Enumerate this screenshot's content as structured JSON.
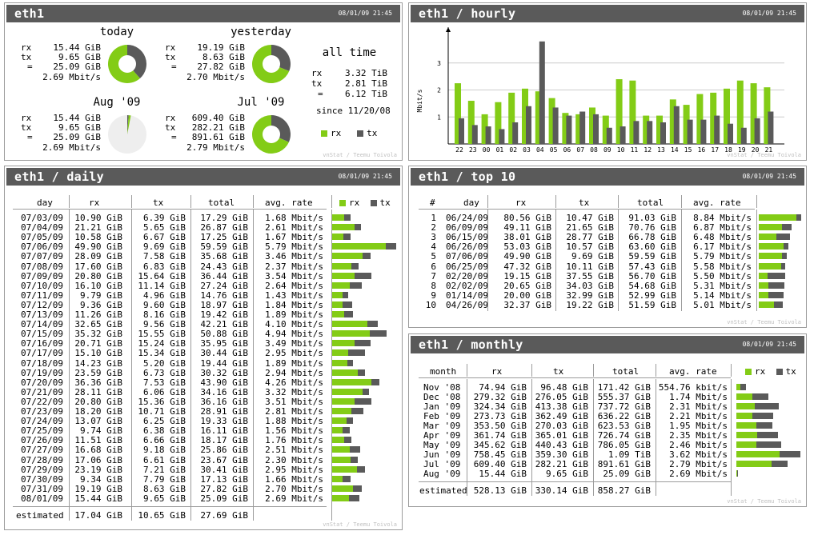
{
  "colors": {
    "rx": "#83cc16",
    "tx": "#5a5a5a",
    "header": "#5a5a5a",
    "pie_bg": "#eeeeee"
  },
  "summary": {
    "title": "eth1",
    "date": "08/01/09 21:45",
    "credit": "vnStat / Teemu Toivola",
    "blocks": [
      {
        "name": "today",
        "rx": "15.44 GiB",
        "tx": "9.65 GiB",
        "total": "25.09 GiB",
        "rate": "2.69 Mbit/s",
        "rx_v": 15.44,
        "tx_v": 9.65,
        "fill": 1.0
      },
      {
        "name": "yesterday",
        "rx": "19.19 GiB",
        "tx": "8.63 GiB",
        "total": "27.82 GiB",
        "rate": "2.70 Mbit/s",
        "rx_v": 19.19,
        "tx_v": 8.63,
        "fill": 1.0
      },
      {
        "name": "Aug '09",
        "rx": "15.44 GiB",
        "tx": "9.65 GiB",
        "total": "25.09 GiB",
        "rate": "2.69 Mbit/s",
        "rx_v": 15.44,
        "tx_v": 9.65,
        "fill": 0.03
      },
      {
        "name": "Jul '09",
        "rx": "609.40 GiB",
        "tx": "282.21 GiB",
        "total": "891.61 GiB",
        "rate": "2.79 Mbit/s",
        "rx_v": 609.4,
        "tx_v": 282.21,
        "fill": 1.0
      }
    ],
    "alltime": {
      "head": "all time",
      "rx": "3.32 TiB",
      "tx": "2.81 TiB",
      "total": "6.12 TiB",
      "since": "since 11/20/08"
    },
    "labels": {
      "rx": "rx",
      "tx": "tx",
      "eq": "="
    }
  },
  "hourly": {
    "title": "eth1 / hourly",
    "date": "08/01/09 21:45",
    "credit": "vnStat / Teemu Toivola",
    "ylabel": "Mbit/s"
  },
  "chart_data": {
    "type": "bar",
    "categories": [
      "22",
      "23",
      "00",
      "01",
      "02",
      "03",
      "04",
      "05",
      "06",
      "07",
      "08",
      "09",
      "10",
      "11",
      "12",
      "13",
      "14",
      "15",
      "16",
      "17",
      "18",
      "19",
      "20",
      "21"
    ],
    "series": [
      {
        "name": "rx",
        "values": [
          2.25,
          1.6,
          1.1,
          1.55,
          1.9,
          2.05,
          1.95,
          1.7,
          1.15,
          1.1,
          1.35,
          1.05,
          2.4,
          2.35,
          1.05,
          1.05,
          1.65,
          1.45,
          1.85,
          1.9,
          2.05,
          2.35,
          2.25,
          2.1
        ]
      },
      {
        "name": "tx",
        "values": [
          0.95,
          0.7,
          0.65,
          0.55,
          0.8,
          1.4,
          3.8,
          1.35,
          1.05,
          1.2,
          1.1,
          0.6,
          0.65,
          0.85,
          0.85,
          0.8,
          1.4,
          0.9,
          0.9,
          1.05,
          0.75,
          0.6,
          0.95,
          1.2
        ]
      }
    ],
    "yticks": [
      "1",
      "2",
      "3"
    ],
    "ylim": [
      0,
      4.15
    ]
  },
  "daily": {
    "title": "eth1 / daily",
    "date": "08/01/09 21:45",
    "credit": "vnStat / Teemu Toivola",
    "columns": [
      "day",
      "rx",
      "tx",
      "total",
      "avg. rate"
    ],
    "legend": {
      "rx": "rx",
      "tx": "tx"
    },
    "rows": [
      {
        "c": [
          "07/03/09",
          "10.90 GiB",
          "6.39 GiB",
          "17.29 GiB",
          "1.68 Mbit/s"
        ],
        "rx": 10.9,
        "tx": 6.39
      },
      {
        "c": [
          "07/04/09",
          "21.21 GiB",
          "5.65 GiB",
          "26.87 GiB",
          "2.61 Mbit/s"
        ],
        "rx": 21.21,
        "tx": 5.65
      },
      {
        "c": [
          "07/05/09",
          "10.58 GiB",
          "6.67 GiB",
          "17.25 GiB",
          "1.67 Mbit/s"
        ],
        "rx": 10.58,
        "tx": 6.67
      },
      {
        "c": [
          "07/06/09",
          "49.90 GiB",
          "9.69 GiB",
          "59.59 GiB",
          "5.79 Mbit/s"
        ],
        "rx": 49.9,
        "tx": 9.69
      },
      {
        "c": [
          "07/07/09",
          "28.09 GiB",
          "7.58 GiB",
          "35.68 GiB",
          "3.46 Mbit/s"
        ],
        "rx": 28.09,
        "tx": 7.58
      },
      {
        "c": [
          "07/08/09",
          "17.60 GiB",
          "6.83 GiB",
          "24.43 GiB",
          "2.37 Mbit/s"
        ],
        "rx": 17.6,
        "tx": 6.83
      },
      {
        "c": [
          "07/09/09",
          "20.80 GiB",
          "15.64 GiB",
          "36.44 GiB",
          "3.54 Mbit/s"
        ],
        "rx": 20.8,
        "tx": 15.64
      },
      {
        "c": [
          "07/10/09",
          "16.10 GiB",
          "11.14 GiB",
          "27.24 GiB",
          "2.64 Mbit/s"
        ],
        "rx": 16.1,
        "tx": 11.14
      },
      {
        "c": [
          "07/11/09",
          "9.79 GiB",
          "4.96 GiB",
          "14.76 GiB",
          "1.43 Mbit/s"
        ],
        "rx": 9.79,
        "tx": 4.96
      },
      {
        "c": [
          "07/12/09",
          "9.36 GiB",
          "9.60 GiB",
          "18.97 GiB",
          "1.84 Mbit/s"
        ],
        "rx": 9.36,
        "tx": 9.6
      },
      {
        "c": [
          "07/13/09",
          "11.26 GiB",
          "8.16 GiB",
          "19.42 GiB",
          "1.89 Mbit/s"
        ],
        "rx": 11.26,
        "tx": 8.16
      },
      {
        "c": [
          "07/14/09",
          "32.65 GiB",
          "9.56 GiB",
          "42.21 GiB",
          "4.10 Mbit/s"
        ],
        "rx": 32.65,
        "tx": 9.56
      },
      {
        "c": [
          "07/15/09",
          "35.32 GiB",
          "15.55 GiB",
          "50.88 GiB",
          "4.94 Mbit/s"
        ],
        "rx": 35.32,
        "tx": 15.55
      },
      {
        "c": [
          "07/16/09",
          "20.71 GiB",
          "15.24 GiB",
          "35.95 GiB",
          "3.49 Mbit/s"
        ],
        "rx": 20.71,
        "tx": 15.24
      },
      {
        "c": [
          "07/17/09",
          "15.10 GiB",
          "15.34 GiB",
          "30.44 GiB",
          "2.95 Mbit/s"
        ],
        "rx": 15.1,
        "tx": 15.34
      },
      {
        "c": [
          "07/18/09",
          "14.23 GiB",
          "5.20 GiB",
          "19.44 GiB",
          "1.89 Mbit/s"
        ],
        "rx": 14.23,
        "tx": 5.2
      },
      {
        "c": [
          "07/19/09",
          "23.59 GiB",
          "6.73 GiB",
          "30.32 GiB",
          "2.94 Mbit/s"
        ],
        "rx": 23.59,
        "tx": 6.73
      },
      {
        "c": [
          "07/20/09",
          "36.36 GiB",
          "7.53 GiB",
          "43.90 GiB",
          "4.26 Mbit/s"
        ],
        "rx": 36.36,
        "tx": 7.53
      },
      {
        "c": [
          "07/21/09",
          "28.11 GiB",
          "6.06 GiB",
          "34.16 GiB",
          "3.32 Mbit/s"
        ],
        "rx": 28.11,
        "tx": 6.06
      },
      {
        "c": [
          "07/22/09",
          "20.80 GiB",
          "15.36 GiB",
          "36.16 GiB",
          "3.51 Mbit/s"
        ],
        "rx": 20.8,
        "tx": 15.36
      },
      {
        "c": [
          "07/23/09",
          "18.20 GiB",
          "10.71 GiB",
          "28.91 GiB",
          "2.81 Mbit/s"
        ],
        "rx": 18.2,
        "tx": 10.71
      },
      {
        "c": [
          "07/24/09",
          "13.07 GiB",
          "6.25 GiB",
          "19.33 GiB",
          "1.88 Mbit/s"
        ],
        "rx": 13.07,
        "tx": 6.25
      },
      {
        "c": [
          "07/25/09",
          "9.74 GiB",
          "6.38 GiB",
          "16.11 GiB",
          "1.56 Mbit/s"
        ],
        "rx": 9.74,
        "tx": 6.38
      },
      {
        "c": [
          "07/26/09",
          "11.51 GiB",
          "6.66 GiB",
          "18.17 GiB",
          "1.76 Mbit/s"
        ],
        "rx": 11.51,
        "tx": 6.66
      },
      {
        "c": [
          "07/27/09",
          "16.68 GiB",
          "9.18 GiB",
          "25.86 GiB",
          "2.51 Mbit/s"
        ],
        "rx": 16.68,
        "tx": 9.18
      },
      {
        "c": [
          "07/28/09",
          "17.06 GiB",
          "6.61 GiB",
          "23.67 GiB",
          "2.30 Mbit/s"
        ],
        "rx": 17.06,
        "tx": 6.61
      },
      {
        "c": [
          "07/29/09",
          "23.19 GiB",
          "7.21 GiB",
          "30.41 GiB",
          "2.95 Mbit/s"
        ],
        "rx": 23.19,
        "tx": 7.21
      },
      {
        "c": [
          "07/30/09",
          "9.34 GiB",
          "7.79 GiB",
          "17.13 GiB",
          "1.66 Mbit/s"
        ],
        "rx": 9.34,
        "tx": 7.79
      },
      {
        "c": [
          "07/31/09",
          "19.19 GiB",
          "8.63 GiB",
          "27.82 GiB",
          "2.70 Mbit/s"
        ],
        "rx": 19.19,
        "tx": 8.63
      },
      {
        "c": [
          "08/01/09",
          "15.44 GiB",
          "9.65 GiB",
          "25.09 GiB",
          "2.69 Mbit/s"
        ],
        "rx": 15.44,
        "tx": 9.65
      }
    ],
    "estimated": [
      "estimated",
      "17.04 GiB",
      "10.65 GiB",
      "27.69 GiB"
    ],
    "scale_max": 59.59
  },
  "top10": {
    "title": "eth1 / top 10",
    "date": "08/01/09 21:45",
    "credit": "vnStat / Teemu Toivola",
    "columns": [
      "#",
      "day",
      "rx",
      "tx",
      "total",
      "avg. rate"
    ],
    "rows": [
      {
        "c": [
          "1",
          "06/24/09",
          "80.56 GiB",
          "10.47 GiB",
          "91.03 GiB",
          "8.84 Mbit/s"
        ],
        "rx": 80.56,
        "tx": 10.47
      },
      {
        "c": [
          "2",
          "06/09/09",
          "49.11 GiB",
          "21.65 GiB",
          "70.76 GiB",
          "6.87 Mbit/s"
        ],
        "rx": 49.11,
        "tx": 21.65
      },
      {
        "c": [
          "3",
          "06/15/09",
          "38.01 GiB",
          "28.77 GiB",
          "66.78 GiB",
          "6.48 Mbit/s"
        ],
        "rx": 38.01,
        "tx": 28.77
      },
      {
        "c": [
          "4",
          "06/26/09",
          "53.03 GiB",
          "10.57 GiB",
          "63.60 GiB",
          "6.17 Mbit/s"
        ],
        "rx": 53.03,
        "tx": 10.57
      },
      {
        "c": [
          "5",
          "07/06/09",
          "49.90 GiB",
          "9.69 GiB",
          "59.59 GiB",
          "5.79 Mbit/s"
        ],
        "rx": 49.9,
        "tx": 9.69
      },
      {
        "c": [
          "6",
          "06/25/09",
          "47.32 GiB",
          "10.11 GiB",
          "57.43 GiB",
          "5.58 Mbit/s"
        ],
        "rx": 47.32,
        "tx": 10.11
      },
      {
        "c": [
          "7",
          "02/20/09",
          "19.15 GiB",
          "37.55 GiB",
          "56.70 GiB",
          "5.50 Mbit/s"
        ],
        "rx": 19.15,
        "tx": 37.55
      },
      {
        "c": [
          "8",
          "02/02/09",
          "20.65 GiB",
          "34.03 GiB",
          "54.68 GiB",
          "5.31 Mbit/s"
        ],
        "rx": 20.65,
        "tx": 34.03
      },
      {
        "c": [
          "9",
          "01/14/09",
          "20.00 GiB",
          "32.99 GiB",
          "52.99 GiB",
          "5.14 Mbit/s"
        ],
        "rx": 20.0,
        "tx": 32.99
      },
      {
        "c": [
          "10",
          "04/26/09",
          "32.37 GiB",
          "19.22 GiB",
          "51.59 GiB",
          "5.01 Mbit/s"
        ],
        "rx": 32.37,
        "tx": 19.22
      }
    ],
    "scale_max": 91.03
  },
  "monthly": {
    "title": "eth1 / monthly",
    "date": "08/01/09 21:45",
    "credit": "vnStat / Teemu Toivola",
    "columns": [
      "month",
      "rx",
      "tx",
      "total",
      "avg. rate"
    ],
    "legend": {
      "rx": "rx",
      "tx": "tx"
    },
    "rows": [
      {
        "c": [
          "Nov '08",
          "74.94 GiB",
          "96.48 GiB",
          "171.42 GiB",
          "554.76 kbit/s"
        ],
        "rx": 74.94,
        "tx": 96.48
      },
      {
        "c": [
          "Dec '08",
          "279.32 GiB",
          "276.05 GiB",
          "555.37 GiB",
          "1.74 Mbit/s"
        ],
        "rx": 279.32,
        "tx": 276.05
      },
      {
        "c": [
          "Jan '09",
          "324.34 GiB",
          "413.38 GiB",
          "737.72 GiB",
          "2.31 Mbit/s"
        ],
        "rx": 324.34,
        "tx": 413.38
      },
      {
        "c": [
          "Feb '09",
          "273.73 GiB",
          "362.49 GiB",
          "636.22 GiB",
          "2.21 Mbit/s"
        ],
        "rx": 273.73,
        "tx": 362.49
      },
      {
        "c": [
          "Mar '09",
          "353.50 GiB",
          "270.03 GiB",
          "623.53 GiB",
          "1.95 Mbit/s"
        ],
        "rx": 353.5,
        "tx": 270.03
      },
      {
        "c": [
          "Apr '09",
          "361.74 GiB",
          "365.01 GiB",
          "726.74 GiB",
          "2.35 Mbit/s"
        ],
        "rx": 361.74,
        "tx": 365.01
      },
      {
        "c": [
          "May '09",
          "345.62 GiB",
          "440.43 GiB",
          "786.05 GiB",
          "2.46 Mbit/s"
        ],
        "rx": 345.62,
        "tx": 440.43
      },
      {
        "c": [
          "Jun '09",
          "758.45 GiB",
          "359.30 GiB",
          "1.09 TiB",
          "3.62 Mbit/s"
        ],
        "rx": 758.45,
        "tx": 359.3
      },
      {
        "c": [
          "Jul '09",
          "609.40 GiB",
          "282.21 GiB",
          "891.61 GiB",
          "2.79 Mbit/s"
        ],
        "rx": 609.4,
        "tx": 282.21
      },
      {
        "c": [
          "Aug '09",
          "15.44 GiB",
          "9.65 GiB",
          "25.09 GiB",
          "2.69 Mbit/s"
        ],
        "rx": 15.44,
        "tx": 9.65
      }
    ],
    "estimated": [
      "estimated",
      "528.13 GiB",
      "330.14 GiB",
      "858.27 GiB"
    ],
    "scale_max": 1117.75
  }
}
